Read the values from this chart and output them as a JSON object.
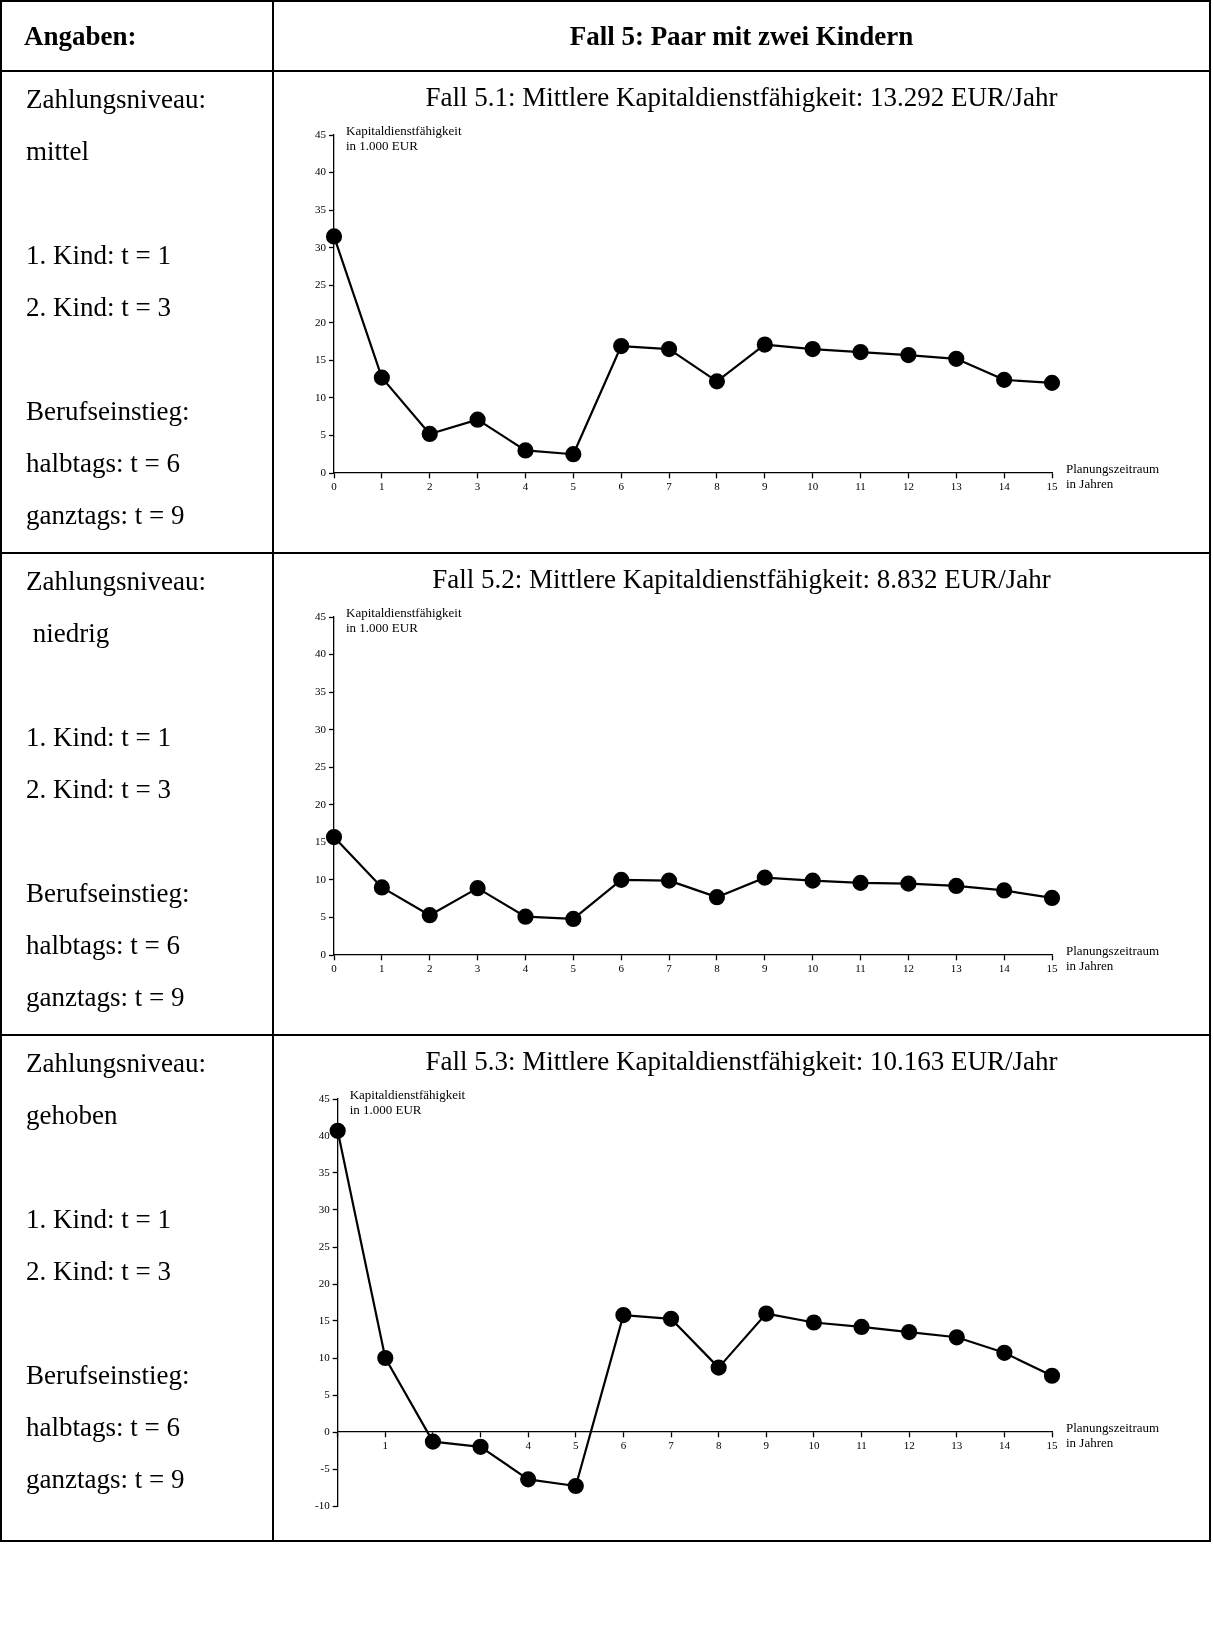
{
  "chart_data": [
    {
      "type": "other",
      "title": "Fall 5: Paar mit zwei Kindern",
      "annotations": [
        "Angaben:"
      ]
    },
    {
      "type": "line",
      "title": "Fall 5.1: Mittlere Kapitaldienstfähigkeit: 13.292 EUR/Jahr",
      "xlabel": "Planungszeitraum in Jahren",
      "ylabel": "Kapitaldienstfähigkeit in 1.000 EUR",
      "annotations": [
        "Zahlungsniveau:",
        "mittel",
        "1. Kind: t = 1",
        "2. Kind: t = 3",
        "Berufseinstieg:",
        "halbtags: t = 6",
        "ganztags: t = 9"
      ],
      "x": [
        0,
        1,
        2,
        3,
        4,
        5,
        6,
        7,
        8,
        9,
        10,
        11,
        12,
        13,
        14,
        15
      ],
      "xlim": [
        0,
        15
      ],
      "xticks": [
        0,
        1,
        2,
        3,
        4,
        5,
        6,
        7,
        8,
        9,
        10,
        11,
        12,
        13,
        14,
        15
      ],
      "ylim": [
        0,
        45
      ],
      "yticks": [
        0,
        5,
        10,
        15,
        20,
        25,
        30,
        35,
        40,
        45
      ],
      "grid": false,
      "legend": false,
      "marker": "circle",
      "line_style": "solid",
      "series": [
        {
          "color": "#000000",
          "values": [
            31.5,
            12.7,
            5.2,
            7.1,
            3.0,
            2.5,
            16.9,
            16.5,
            12.2,
            17.1,
            16.5,
            16.1,
            15.7,
            15.2,
            12.4,
            12.0
          ]
        }
      ]
    },
    {
      "type": "line",
      "title": "Fall 5.2: Mittlere Kapitaldienstfähigkeit: 8.832 EUR/Jahr",
      "xlabel": "Planungszeitraum in Jahren",
      "ylabel": "Kapitaldienstfähigkeit in 1.000 EUR",
      "annotations": [
        "Zahlungsniveau:",
        " niedrig",
        "1. Kind: t = 1",
        "2. Kind: t = 3",
        "Berufseinstieg:",
        "halbtags: t = 6",
        "ganztags: t = 9"
      ],
      "x": [
        0,
        1,
        2,
        3,
        4,
        5,
        6,
        7,
        8,
        9,
        10,
        11,
        12,
        13,
        14,
        15
      ],
      "xlim": [
        0,
        15
      ],
      "xticks": [
        0,
        1,
        2,
        3,
        4,
        5,
        6,
        7,
        8,
        9,
        10,
        11,
        12,
        13,
        14,
        15
      ],
      "ylim": [
        0,
        45
      ],
      "yticks": [
        0,
        5,
        10,
        15,
        20,
        25,
        30,
        35,
        40,
        45
      ],
      "grid": false,
      "legend": false,
      "marker": "circle",
      "line_style": "solid",
      "series": [
        {
          "color": "#000000",
          "values": [
            15.7,
            9.0,
            5.3,
            8.9,
            5.1,
            4.8,
            10.0,
            9.9,
            7.7,
            10.3,
            9.9,
            9.6,
            9.5,
            9.2,
            8.6,
            7.6
          ]
        }
      ]
    },
    {
      "type": "line",
      "title": "Fall 5.3: Mittlere Kapitaldienstfähigkeit: 10.163 EUR/Jahr",
      "xlabel": "Planungszeitraum in Jahren",
      "ylabel": "Kapitaldienstfähigkeit in 1.000 EUR",
      "annotations": [
        "Zahlungsniveau:",
        "gehoben",
        "1. Kind: t = 1",
        "2. Kind: t = 3",
        "Berufseinstieg:",
        "halbtags: t = 6",
        "ganztags: t = 9"
      ],
      "x": [
        0,
        1,
        2,
        3,
        4,
        5,
        6,
        7,
        8,
        9,
        10,
        11,
        12,
        13,
        14,
        15
      ],
      "xlim": [
        0,
        15
      ],
      "xticks": [
        {
          "value": 0,
          "label": null
        },
        1,
        {
          "value": 2,
          "label": null
        },
        {
          "value": 3,
          "label": null
        },
        4,
        5,
        6,
        7,
        8,
        9,
        10,
        11,
        12,
        13,
        14,
        15
      ],
      "ylim": [
        -10,
        45
      ],
      "yticks": [
        -10,
        -5,
        0,
        5,
        10,
        15,
        20,
        25,
        30,
        35,
        40,
        45
      ],
      "grid": false,
      "legend": false,
      "marker": "circle",
      "line_style": "solid",
      "series": [
        {
          "color": "#000000",
          "values": [
            40.7,
            10.0,
            -1.3,
            -2.0,
            -6.4,
            -7.3,
            15.8,
            15.3,
            8.7,
            16.0,
            14.8,
            14.2,
            13.5,
            12.8,
            10.7,
            7.6
          ]
        }
      ]
    }
  ]
}
